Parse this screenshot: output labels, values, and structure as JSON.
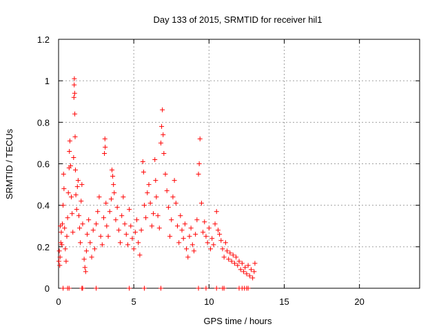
{
  "chart_data": {
    "type": "scatter",
    "title": "Day 133 of 2015, SRMTID for receiver hil1",
    "xlabel": "GPS time / hours",
    "ylabel": "SRMTID / TECUs",
    "xlim": [
      0,
      24
    ],
    "ylim": [
      0,
      1.2
    ],
    "x_ticks": [
      0,
      5,
      10,
      15,
      20
    ],
    "x_tick_labels": [
      "0",
      "5",
      "10",
      "15",
      "20"
    ],
    "y_ticks": [
      0,
      0.2,
      0.4,
      0.6,
      0.8,
      1,
      1.2
    ],
    "y_tick_labels": [
      "0",
      "0.2",
      "0.4",
      "0.6",
      "0.8",
      "1",
      "1.2"
    ],
    "grid": true,
    "marker": "+",
    "color": "#ff0000",
    "series": [
      {
        "name": "hil1",
        "points": [
          [
            0.02,
            0.13
          ],
          [
            0.05,
            0.18
          ],
          [
            0.08,
            0.11
          ],
          [
            0.1,
            0.15
          ],
          [
            0.12,
            0.3
          ],
          [
            0.15,
            0.22
          ],
          [
            0.18,
            0.27
          ],
          [
            0.22,
            0.21
          ],
          [
            0.25,
            0.31
          ],
          [
            0.3,
            0.4
          ],
          [
            0.33,
            0.55
          ],
          [
            0.36,
            0.48
          ],
          [
            0.4,
            0.29
          ],
          [
            0.45,
            0.19
          ],
          [
            0.5,
            0.13
          ],
          [
            0.55,
            0.25
          ],
          [
            0.6,
            0.34
          ],
          [
            0.65,
            0.46
          ],
          [
            0.7,
            0.58
          ],
          [
            0.72,
            0.66
          ],
          [
            0.75,
            0.71
          ],
          [
            0.8,
            0.59
          ],
          [
            0.85,
            0.44
          ],
          [
            0.9,
            0.36
          ],
          [
            0.95,
            0.27
          ],
          [
            1.0,
            0.63
          ],
          [
            1.02,
            0.92
          ],
          [
            1.04,
            0.98
          ],
          [
            1.05,
            1.01
          ],
          [
            1.07,
            0.94
          ],
          [
            1.08,
            0.84
          ],
          [
            1.1,
            0.73
          ],
          [
            1.12,
            0.57
          ],
          [
            1.15,
            0.45
          ],
          [
            1.2,
            0.38
          ],
          [
            1.25,
            0.49
          ],
          [
            1.3,
            0.52
          ],
          [
            1.35,
            0.35
          ],
          [
            1.4,
            0.29
          ],
          [
            1.45,
            0.22
          ],
          [
            1.5,
            0.42
          ],
          [
            1.55,
            0.5
          ],
          [
            1.6,
            0.31
          ],
          [
            1.7,
            0.14
          ],
          [
            1.75,
            0.1
          ],
          [
            1.8,
            0.08
          ],
          [
            1.85,
            0.18
          ],
          [
            1.9,
            0.26
          ],
          [
            2.0,
            0.33
          ],
          [
            2.1,
            0.22
          ],
          [
            2.2,
            0.15
          ],
          [
            2.3,
            0.28
          ],
          [
            2.4,
            0.19
          ],
          [
            2.5,
            0.31
          ],
          [
            2.6,
            0.37
          ],
          [
            2.7,
            0.44
          ],
          [
            2.8,
            0.25
          ],
          [
            2.9,
            0.21
          ],
          [
            3.0,
            0.34
          ],
          [
            3.05,
            0.65
          ],
          [
            3.08,
            0.72
          ],
          [
            3.1,
            0.68
          ],
          [
            3.15,
            0.41
          ],
          [
            3.2,
            0.3
          ],
          [
            3.3,
            0.25
          ],
          [
            3.4,
            0.37
          ],
          [
            3.5,
            0.43
          ],
          [
            3.55,
            0.57
          ],
          [
            3.6,
            0.54
          ],
          [
            3.65,
            0.5
          ],
          [
            3.7,
            0.46
          ],
          [
            3.8,
            0.33
          ],
          [
            3.9,
            0.39
          ],
          [
            4.0,
            0.28
          ],
          [
            4.1,
            0.22
          ],
          [
            4.2,
            0.35
          ],
          [
            4.3,
            0.44
          ],
          [
            4.4,
            0.31
          ],
          [
            4.5,
            0.26
          ],
          [
            4.6,
            0.21
          ],
          [
            4.7,
            0.38
          ],
          [
            4.8,
            0.3
          ],
          [
            4.9,
            0.24
          ],
          [
            5.0,
            0.19
          ],
          [
            5.1,
            0.27
          ],
          [
            5.2,
            0.33
          ],
          [
            5.3,
            0.22
          ],
          [
            5.4,
            0.16
          ],
          [
            5.5,
            0.28
          ],
          [
            5.6,
            0.61
          ],
          [
            5.65,
            0.56
          ],
          [
            5.7,
            0.4
          ],
          [
            5.8,
            0.34
          ],
          [
            5.9,
            0.46
          ],
          [
            6.0,
            0.5
          ],
          [
            6.1,
            0.41
          ],
          [
            6.2,
            0.3
          ],
          [
            6.3,
            0.36
          ],
          [
            6.4,
            0.62
          ],
          [
            6.45,
            0.52
          ],
          [
            6.5,
            0.44
          ],
          [
            6.6,
            0.35
          ],
          [
            6.7,
            0.29
          ],
          [
            6.8,
            0.7
          ],
          [
            6.85,
            0.78
          ],
          [
            6.9,
            0.86
          ],
          [
            6.95,
            0.74
          ],
          [
            7.0,
            0.65
          ],
          [
            7.1,
            0.55
          ],
          [
            7.2,
            0.47
          ],
          [
            7.3,
            0.39
          ],
          [
            7.4,
            0.25
          ],
          [
            7.5,
            0.33
          ],
          [
            7.6,
            0.44
          ],
          [
            7.7,
            0.52
          ],
          [
            7.8,
            0.41
          ],
          [
            7.9,
            0.3
          ],
          [
            8.0,
            0.22
          ],
          [
            8.1,
            0.35
          ],
          [
            8.2,
            0.28
          ],
          [
            8.3,
            0.24
          ],
          [
            8.4,
            0.31
          ],
          [
            8.5,
            0.19
          ],
          [
            8.6,
            0.15
          ],
          [
            8.7,
            0.25
          ],
          [
            8.8,
            0.29
          ],
          [
            8.9,
            0.21
          ],
          [
            9.0,
            0.18
          ],
          [
            9.1,
            0.26
          ],
          [
            9.2,
            0.33
          ],
          [
            9.3,
            0.55
          ],
          [
            9.35,
            0.6
          ],
          [
            9.4,
            0.72
          ],
          [
            9.5,
            0.41
          ],
          [
            9.6,
            0.27
          ],
          [
            9.7,
            0.32
          ],
          [
            9.8,
            0.25
          ],
          [
            9.9,
            0.22
          ],
          [
            10.0,
            0.29
          ],
          [
            10.1,
            0.19
          ],
          [
            10.2,
            0.24
          ],
          [
            10.3,
            0.21
          ],
          [
            10.4,
            0.31
          ],
          [
            10.5,
            0.37
          ],
          [
            10.6,
            0.28
          ],
          [
            10.7,
            0.26
          ],
          [
            10.8,
            0.23
          ],
          [
            10.9,
            0.19
          ],
          [
            11.0,
            0.15
          ],
          [
            11.1,
            0.22
          ],
          [
            11.2,
            0.18
          ],
          [
            11.3,
            0.14
          ],
          [
            11.4,
            0.17
          ],
          [
            11.5,
            0.13
          ],
          [
            11.6,
            0.16
          ],
          [
            11.7,
            0.12
          ],
          [
            11.8,
            0.15
          ],
          [
            11.9,
            0.11
          ],
          [
            12.0,
            0.13
          ],
          [
            12.1,
            0.09
          ],
          [
            12.2,
            0.12
          ],
          [
            12.3,
            0.08
          ],
          [
            12.4,
            0.1
          ],
          [
            12.5,
            0.07
          ],
          [
            12.6,
            0.11
          ],
          [
            12.7,
            0.06
          ],
          [
            12.8,
            0.09
          ],
          [
            12.9,
            0.05
          ],
          [
            13.0,
            0.08
          ],
          [
            13.05,
            0.12
          ],
          [
            0.3,
            0.0
          ],
          [
            0.6,
            0.0
          ],
          [
            0.7,
            0.0
          ],
          [
            1.55,
            0.0
          ],
          [
            1.6,
            0.0
          ],
          [
            2.5,
            0.0
          ],
          [
            4.7,
            0.0
          ],
          [
            5.7,
            0.0
          ],
          [
            6.8,
            0.0
          ],
          [
            9.3,
            0.0
          ],
          [
            9.8,
            0.0
          ],
          [
            10.5,
            0.0
          ],
          [
            10.9,
            0.0
          ],
          [
            11.0,
            0.0
          ],
          [
            12.0,
            0.0
          ],
          [
            12.2,
            0.0
          ],
          [
            12.35,
            0.0
          ],
          [
            12.5,
            0.0
          ],
          [
            12.6,
            0.0
          ]
        ]
      }
    ]
  }
}
